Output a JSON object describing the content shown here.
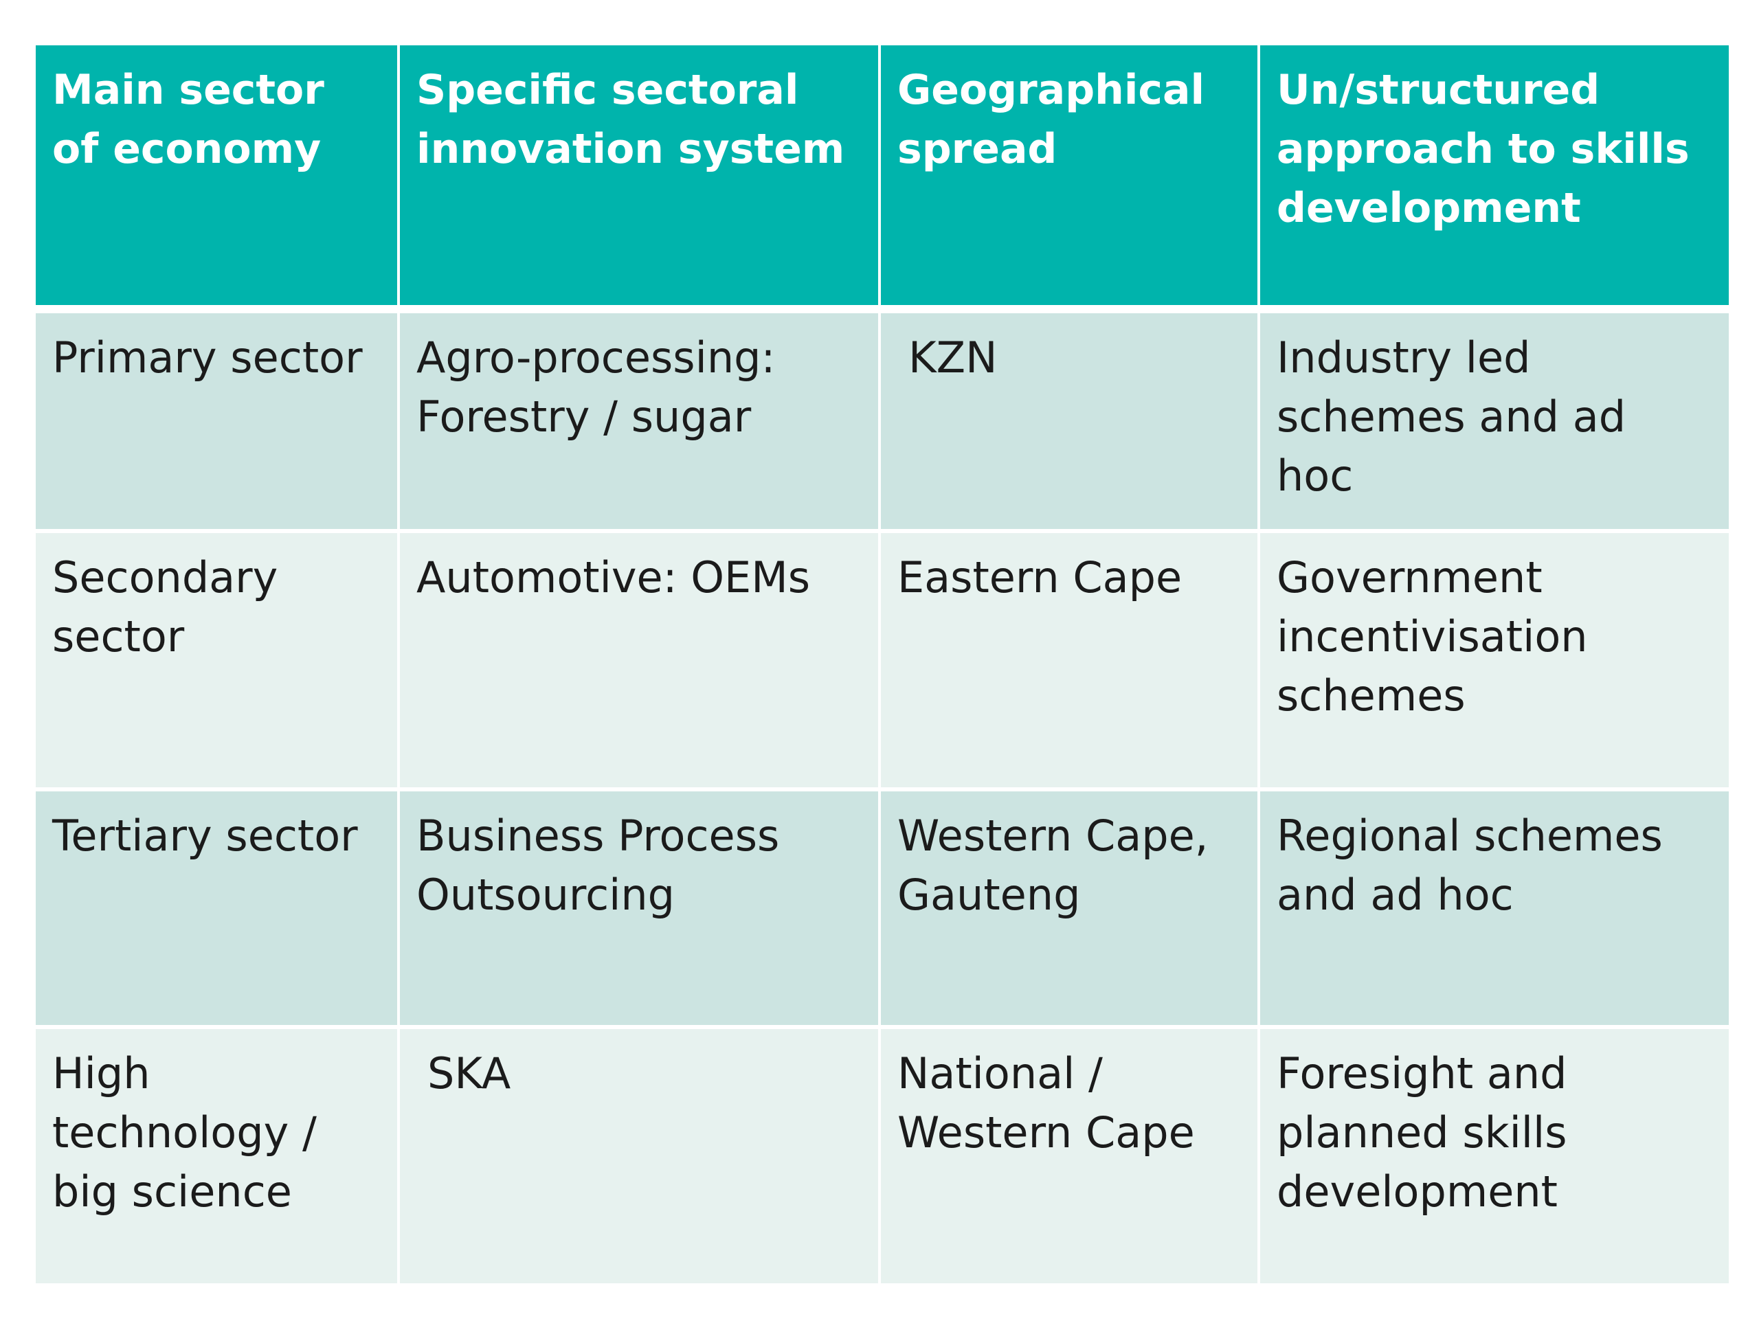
{
  "table": {
    "headers": [
      "Main sector of economy",
      "Specific sectoral innovation system",
      "Geographical spread",
      "Un/structured approach to skills development"
    ],
    "rows": [
      {
        "sector": "Primary sector",
        "system": "Agro-processing: Forestry / sugar",
        "spread": "KZN",
        "approach": "Industry led schemes and ad hoc"
      },
      {
        "sector": "Secondary sector",
        "system": "Automotive: OEMs",
        "spread": "Eastern Cape",
        "approach": "Government incentivisation schemes"
      },
      {
        "sector": "Tertiary sector",
        "system": "Business Process Outsourcing",
        "spread": "Western Cape, Gauteng",
        "approach": "Regional schemes and ad hoc"
      },
      {
        "sector": "High technology / big science",
        "system": "SKA",
        "spread": "National / Western Cape",
        "approach": "Foresight and planned skills development"
      }
    ]
  },
  "colors": {
    "header_bg": "#00b4ac",
    "row_dark": "#cce4e1",
    "row_light": "#e7f2ef"
  }
}
